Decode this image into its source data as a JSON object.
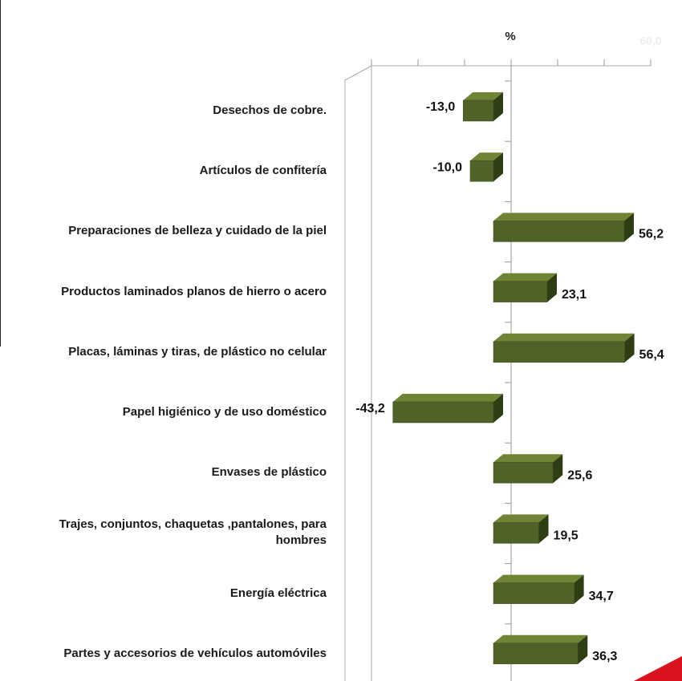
{
  "chart_data": {
    "type": "bar",
    "orientation": "horizontal",
    "axis_label": "%",
    "categories": [
      "Desechos de cobre.",
      "Artículos de confitería",
      "Preparaciones de belleza y cuidado de la piel",
      "Productos laminados planos de hierro o acero",
      "Placas, láminas y tiras, de plástico no celular",
      "Papel higiénico y de uso doméstico",
      "Envases de plástico",
      "Trajes, conjuntos, chaquetas ,pantalones, para hombres",
      "Energía eléctrica",
      "Partes y accesorios de vehículos automóviles"
    ],
    "values": [
      -13.0,
      -10.0,
      56.2,
      23.1,
      56.4,
      -43.2,
      25.6,
      19.5,
      34.7,
      36.3
    ],
    "value_labels": [
      "-13,0",
      "-10,0",
      "56,2",
      "23,1",
      "56,4",
      "-43,2",
      "25,6",
      "19,5",
      "34,7",
      "36,3"
    ],
    "color": "#4f6228",
    "xlim": [
      -60,
      60
    ],
    "xticks": [
      -60,
      -40,
      -20,
      0,
      20,
      40,
      {
        "value": 60,
        "label": "60,0"
      }
    ]
  }
}
